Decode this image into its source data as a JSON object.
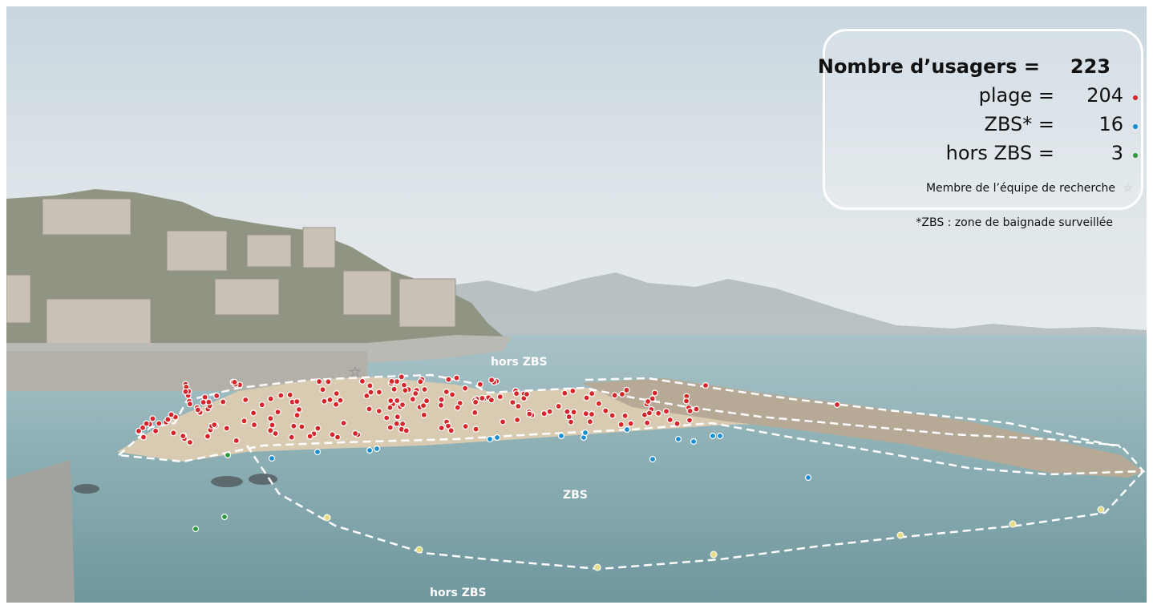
{
  "legend": {
    "total_label": "Nombre d’usagers =",
    "total_value": "223",
    "beach_label": "plage =",
    "beach_value": "204",
    "zbs_label": "ZBS* =",
    "zbs_value": "16",
    "outside_label": "hors ZBS =",
    "outside_value": "3",
    "member_label": "Membre de l’équipe de recherche"
  },
  "footnote": "*ZBS : zone de baignade surveillée",
  "zones": {
    "outside_top": "hors ZBS",
    "zbs": "ZBS",
    "outside_bottom": "hors ZBS"
  },
  "colors": {
    "beach_users": "#d7262b",
    "zbs_users": "#1a8fd0",
    "outside_users": "#2f9a3a",
    "outline": "#ffffff"
  }
}
